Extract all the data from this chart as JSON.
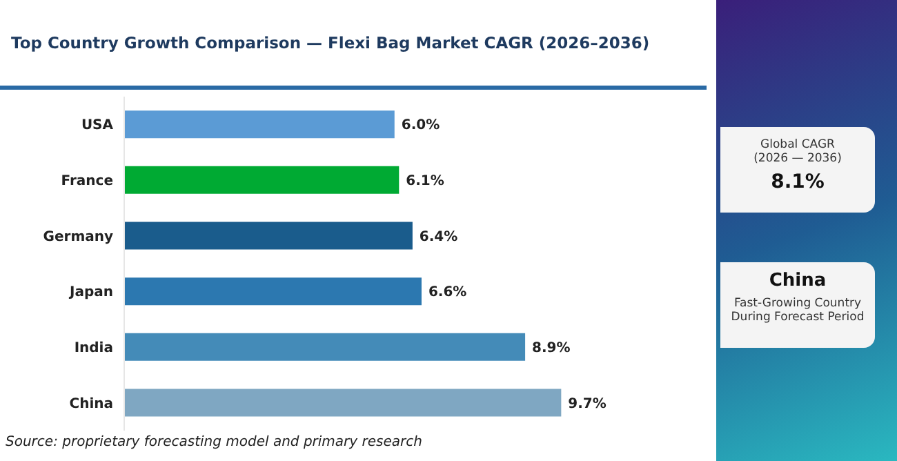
{
  "chart_data": {
    "type": "bar",
    "orientation": "horizontal",
    "title": "Top Country Growth Comparison — Flexi Bag Market CAGR (2026–2036)",
    "categories": [
      "USA",
      "France",
      "Germany",
      "Japan",
      "India",
      "China"
    ],
    "values": [
      6.0,
      6.1,
      6.4,
      6.6,
      8.9,
      9.7
    ],
    "value_labels": [
      "6.0%",
      "6.1%",
      "6.4%",
      "6.6%",
      "8.9%",
      "9.7%"
    ],
    "colors": [
      "#5b9bd5",
      "#00aa33",
      "#1a5c8c",
      "#2c78b0",
      "#448bb8",
      "#7fa7c2"
    ],
    "grid": false,
    "legend": false,
    "annotations": [
      "Source: proprietary forecasting model and primary research",
      "Global CAGR",
      "(2026 — 2036)",
      "8.1%",
      "China",
      "Fast-Growing Country",
      "During Forecast Period"
    ]
  }
}
